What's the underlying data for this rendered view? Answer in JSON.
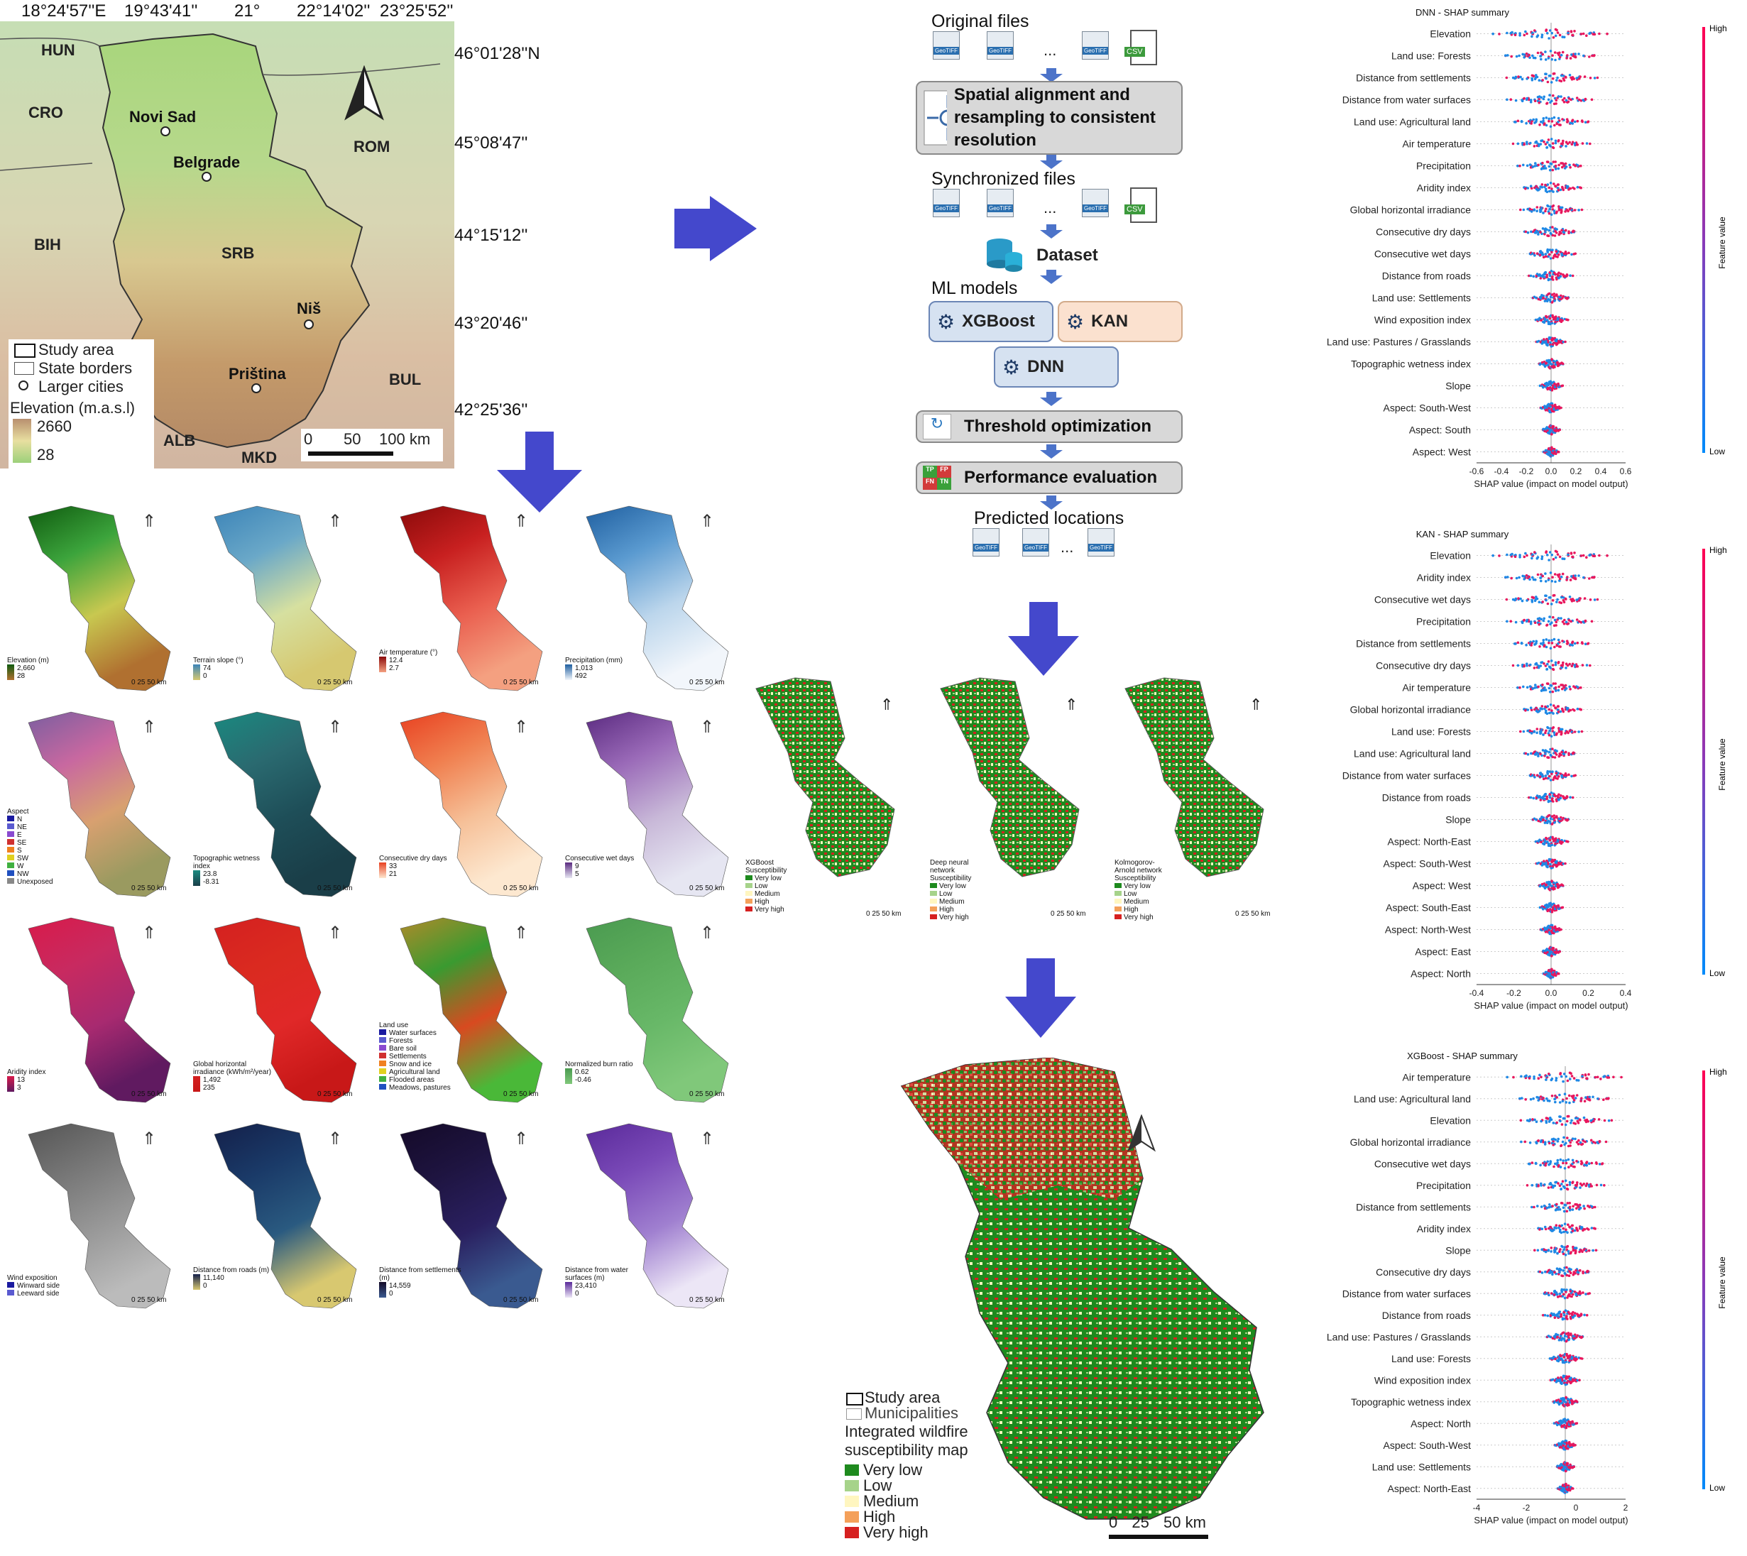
{
  "overview": {
    "coords_top": [
      "18°24'57''E",
      "19°43'41''",
      "21°",
      "22°14'02''",
      "23°25'52''"
    ],
    "coords_right": [
      "46°01'28''N",
      "45°08'47''",
      "44°15'12''",
      "43°20'46''",
      "42°25'36''"
    ],
    "countries": [
      "HUN",
      "CRO",
      "ROM",
      "BIH",
      "SRB",
      "BUL",
      "ALB",
      "MKD"
    ],
    "cities": [
      "Novi Sad",
      "Belgrade",
      "Niš",
      "Priština"
    ],
    "legend": {
      "study_area": "Study area",
      "state_borders": "State borders",
      "larger_cities": "Larger cities",
      "elevation_title": "Elevation (m.a.s.l)",
      "elev_high": "2660",
      "elev_low": "28"
    },
    "scale": {
      "s0": "0",
      "s50": "50",
      "s100": "100 km"
    }
  },
  "factor_maps": [
    {
      "title": "Elevation (m)",
      "hi": "2,660",
      "lo": "28"
    },
    {
      "title": "Terrain slope (°)",
      "hi": "74",
      "lo": "0"
    },
    {
      "title": "Air temperature (°)",
      "hi": "12.4",
      "lo": "2.7"
    },
    {
      "title": "Precipitation (mm)",
      "hi": "1,013",
      "lo": "492"
    },
    {
      "title": "Aspect",
      "items": [
        "N",
        "NE",
        "E",
        "SE",
        "S",
        "SW",
        "W",
        "NW",
        "Unexposed"
      ]
    },
    {
      "title": "Topographic wetness index",
      "hi": "23.8",
      "lo": "-8.31"
    },
    {
      "title": "Consecutive dry days",
      "hi": "33",
      "lo": "21"
    },
    {
      "title": "Consecutive wet days",
      "hi": "9",
      "lo": "5"
    },
    {
      "title": "Aridity index",
      "hi": "13",
      "lo": "3"
    },
    {
      "title": "Global horizontal irradiance (kWh/m²/year)",
      "hi": "1,492",
      "lo": "235"
    },
    {
      "title": "Land use",
      "items": [
        "Water surfaces",
        "Forests",
        "Bare soil",
        "Settlements",
        "Snow and ice",
        "Agricultural land",
        "Flooded areas",
        "Meadows, pastures"
      ]
    },
    {
      "title": "Normalized burn ratio",
      "hi": "0.62",
      "lo": "-0.46"
    },
    {
      "title": "Wind exposition",
      "items": [
        "Winward side",
        "Leeward side"
      ]
    },
    {
      "title": "Distance from roads (m)",
      "hi": "11,140",
      "lo": "0"
    },
    {
      "title": "Distance from settlements (m)",
      "hi": "14,559",
      "lo": "0"
    },
    {
      "title": "Distance from water surfaces (m)",
      "hi": "23,410",
      "lo": "0"
    }
  ],
  "map_scale": {
    "a": "0",
    "b": "25",
    "c": "50 km"
  },
  "flow": {
    "original_files": "Original files",
    "spatial": "Spatial alignment and resampling to consistent resolution",
    "synchronized": "Synchronized files",
    "dataset": "Dataset",
    "ml_models": "ML models",
    "xgboost": "XGBoost",
    "kan": "KAN",
    "dnn": "DNN",
    "threshold": "Threshold optimization",
    "performance": "Performance evaluation",
    "predicted": "Predicted locations",
    "geotiff": "GeoTIFF",
    "csv": "CSV",
    "ellipsis": "...",
    "tp": "TP",
    "fp": "FP",
    "fn": "FN",
    "tn": "TN"
  },
  "susceptibility": {
    "models": [
      "XGBoost",
      "Deep neural network",
      "Kolmogorov-Arnold network"
    ],
    "legend_title": "Susceptibility",
    "classes": [
      "Very low",
      "Low",
      "Medium",
      "High",
      "Very high"
    ],
    "colors": [
      "#1e8a1e",
      "#a6d38a",
      "#fff6c0",
      "#f4a05a",
      "#d62020"
    ]
  },
  "integrated": {
    "study_area": "Study area",
    "municipalities": "Municipalities",
    "title": "Integrated wildfire susceptibility map",
    "classes": [
      "Very low",
      "Low",
      "Medium",
      "High",
      "Very high"
    ],
    "scale": {
      "a": "0",
      "b": "25",
      "c": "50 km"
    }
  },
  "shap_common": {
    "high": "High",
    "low": "Low",
    "feature_value": "Feature value",
    "xlabel": "SHAP value (impact on model output)"
  },
  "shap": [
    {
      "title": "DNN - SHAP summary",
      "xticks": [
        "-0.6",
        "-0.4",
        "-0.2",
        "0.0",
        "0.2",
        "0.4",
        "0.6"
      ],
      "features": [
        "Elevation",
        "Land use: Forests",
        "Distance from settlements",
        "Distance from water surfaces",
        "Land use: Agricultural land",
        "Air temperature",
        "Precipitation",
        "Aridity index",
        "Global horizontal irradiance",
        "Consecutive dry days",
        "Consecutive wet days",
        "Distance from roads",
        "Land use: Settlements",
        "Wind exposition index",
        "Land use: Pastures / Grasslands",
        "Topographic wetness index",
        "Slope",
        "Aspect: South-West",
        "Aspect: South",
        "Aspect: West"
      ]
    },
    {
      "title": "KAN - SHAP summary",
      "xticks": [
        "-0.4",
        "-0.2",
        "0.0",
        "0.2",
        "0.4"
      ],
      "features": [
        "Elevation",
        "Aridity index",
        "Consecutive wet days",
        "Precipitation",
        "Distance from settlements",
        "Consecutive dry days",
        "Air temperature",
        "Global horizontal irradiance",
        "Land use: Forests",
        "Land use: Agricultural land",
        "Distance from water surfaces",
        "Distance from roads",
        "Slope",
        "Aspect: North-East",
        "Aspect: South-West",
        "Aspect: West",
        "Aspect: South-East",
        "Aspect: North-West",
        "Aspect: East",
        "Aspect: North"
      ]
    },
    {
      "title": "XGBoost - SHAP summary",
      "xticks": [
        "-4",
        "-2",
        "0",
        "2"
      ],
      "features": [
        "Air temperature",
        "Land use: Agricultural land",
        "Elevation",
        "Global horizontal irradiance",
        "Consecutive wet days",
        "Precipitation",
        "Distance from settlements",
        "Aridity index",
        "Slope",
        "Consecutive dry days",
        "Distance from water surfaces",
        "Distance from roads",
        "Land use: Pastures / Grasslands",
        "Land use: Forests",
        "Wind exposition index",
        "Topographic wetness index",
        "Aspect: North",
        "Aspect: South-West",
        "Land use: Settlements",
        "Aspect: North-East"
      ]
    }
  ]
}
